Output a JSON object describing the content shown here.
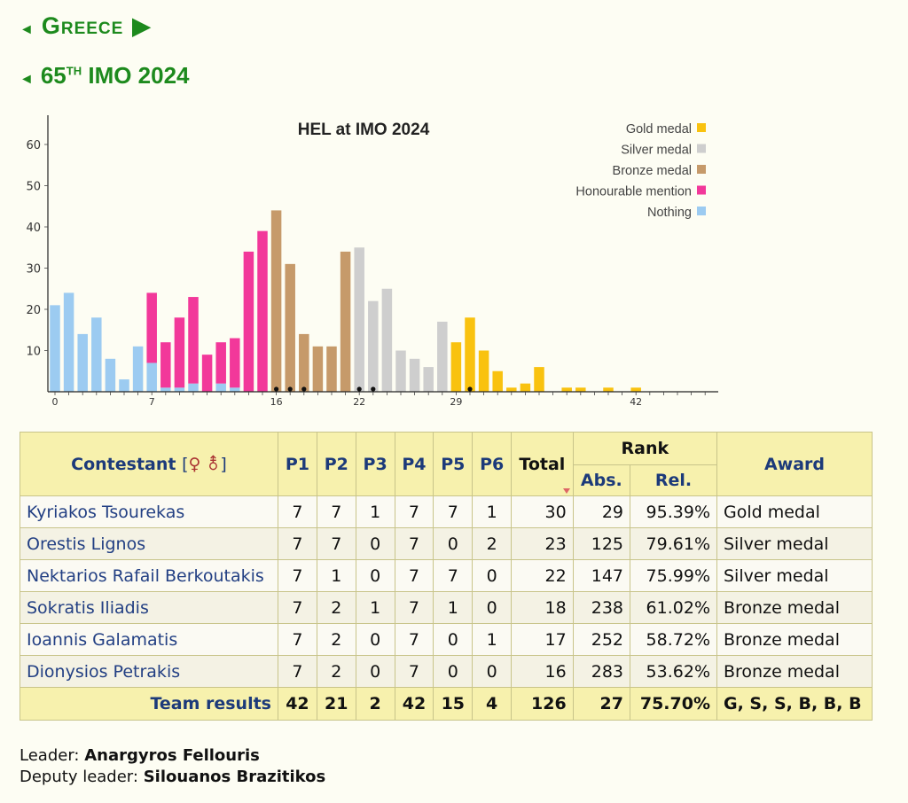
{
  "nav": {
    "country": "Greece",
    "imo_ordinal": "65",
    "imo_suffix": "TH",
    "imo_label": "IMO 2024"
  },
  "colors": {
    "gold": "#f9c20f",
    "silver": "#cecece",
    "bronze": "#c69a6a",
    "hm": "#f2389a",
    "nothing": "#9ccbf1",
    "nav_green": "#1d8a1d"
  },
  "chart_data": {
    "type": "bar",
    "title": "HEL at IMO 2024",
    "xlabel": "",
    "ylabel": "",
    "ylim": [
      0,
      65
    ],
    "xlim": [
      0,
      48
    ],
    "x_ticks": [
      0,
      7,
      16,
      22,
      29,
      42
    ],
    "y_ticks": [
      10,
      20,
      30,
      40,
      50,
      60
    ],
    "grid": false,
    "legend_position": "top-right",
    "legend": [
      "Gold medal",
      "Silver medal",
      "Bronze medal",
      "Honourable mention",
      "Nothing"
    ],
    "x": [
      0,
      1,
      2,
      3,
      4,
      5,
      6,
      7,
      8,
      9,
      10,
      11,
      12,
      13,
      14,
      15,
      16,
      17,
      18,
      19,
      20,
      21,
      22,
      23,
      24,
      25,
      26,
      27,
      28,
      29,
      30,
      31,
      32,
      33,
      34,
      35,
      36,
      37,
      38,
      39,
      40,
      41,
      42,
      43,
      44,
      45,
      46,
      47,
      48
    ],
    "series": [
      {
        "name": "Gold medal",
        "values": [
          0,
          0,
          0,
          0,
          0,
          0,
          0,
          0,
          0,
          0,
          0,
          0,
          0,
          0,
          0,
          0,
          0,
          0,
          0,
          0,
          0,
          0,
          0,
          0,
          0,
          0,
          0,
          0,
          0,
          12,
          18,
          10,
          5,
          1,
          2,
          6,
          0,
          1,
          1,
          0,
          1,
          0,
          1,
          0,
          0,
          0,
          0,
          0,
          0
        ]
      },
      {
        "name": "Silver medal",
        "values": [
          0,
          0,
          0,
          0,
          0,
          0,
          0,
          0,
          0,
          0,
          0,
          0,
          0,
          0,
          0,
          0,
          0,
          0,
          0,
          0,
          0,
          0,
          35,
          22,
          25,
          10,
          8,
          6,
          17,
          0,
          0,
          0,
          0,
          0,
          0,
          0,
          0,
          0,
          0,
          0,
          0,
          0,
          0,
          0,
          0,
          0,
          0,
          0,
          0
        ]
      },
      {
        "name": "Bronze medal",
        "values": [
          0,
          0,
          0,
          0,
          0,
          0,
          0,
          0,
          0,
          0,
          0,
          0,
          0,
          0,
          0,
          0,
          44,
          31,
          14,
          11,
          11,
          34,
          0,
          0,
          0,
          0,
          0,
          0,
          0,
          0,
          0,
          0,
          0,
          0,
          0,
          0,
          0,
          0,
          0,
          0,
          0,
          0,
          0,
          0,
          0,
          0,
          0,
          0,
          0
        ]
      },
      {
        "name": "Honourable mention",
        "values": [
          0,
          0,
          0,
          0,
          0,
          0,
          0,
          17,
          11,
          17,
          21,
          9,
          10,
          12,
          34,
          39,
          0,
          0,
          0,
          0,
          0,
          0,
          0,
          0,
          0,
          0,
          0,
          0,
          0,
          0,
          0,
          0,
          0,
          0,
          0,
          0,
          0,
          0,
          0,
          0,
          0,
          0,
          0,
          0,
          0,
          0,
          0,
          0,
          0
        ]
      },
      {
        "name": "Nothing",
        "values": [
          21,
          24,
          14,
          18,
          8,
          3,
          11,
          7,
          1,
          1,
          2,
          0,
          2,
          1,
          0,
          0,
          0,
          0,
          0,
          0,
          0,
          0,
          0,
          0,
          0,
          0,
          0,
          0,
          0,
          0,
          0,
          0,
          0,
          0,
          0,
          0,
          0,
          0,
          0,
          0,
          0,
          0,
          0,
          0,
          0,
          0,
          0,
          0,
          0
        ]
      }
    ],
    "team_scores": [
      16,
      17,
      18,
      22,
      23,
      30
    ]
  },
  "table": {
    "header": {
      "contestant": "Contestant",
      "gender_symbols": "♀ ⚨",
      "p1": "P1",
      "p2": "P2",
      "p3": "P3",
      "p4": "P4",
      "p5": "P5",
      "p6": "P6",
      "total": "Total",
      "rank": "Rank",
      "abs": "Abs.",
      "rel": "Rel.",
      "award": "Award"
    },
    "rows": [
      {
        "name": "Kyriakos Tsourekas",
        "p1": "7",
        "p2": "7",
        "p3": "1",
        "p4": "7",
        "p5": "7",
        "p6": "1",
        "total": "30",
        "abs": "29",
        "rel": "95.39%",
        "award": "Gold medal"
      },
      {
        "name": "Orestis Lignos",
        "p1": "7",
        "p2": "7",
        "p3": "0",
        "p4": "7",
        "p5": "0",
        "p6": "2",
        "total": "23",
        "abs": "125",
        "rel": "79.61%",
        "award": "Silver medal"
      },
      {
        "name": "Nektarios Rafail Berkoutakis",
        "p1": "7",
        "p2": "1",
        "p3": "0",
        "p4": "7",
        "p5": "7",
        "p6": "0",
        "total": "22",
        "abs": "147",
        "rel": "75.99%",
        "award": "Silver medal"
      },
      {
        "name": "Sokratis Iliadis",
        "p1": "7",
        "p2": "2",
        "p3": "1",
        "p4": "7",
        "p5": "1",
        "p6": "0",
        "total": "18",
        "abs": "238",
        "rel": "61.02%",
        "award": "Bronze medal"
      },
      {
        "name": "Ioannis Galamatis",
        "p1": "7",
        "p2": "2",
        "p3": "0",
        "p4": "7",
        "p5": "0",
        "p6": "1",
        "total": "17",
        "abs": "252",
        "rel": "58.72%",
        "award": "Bronze medal"
      },
      {
        "name": "Dionysios Petrakis",
        "p1": "7",
        "p2": "2",
        "p3": "0",
        "p4": "7",
        "p5": "0",
        "p6": "0",
        "total": "16",
        "abs": "283",
        "rel": "53.62%",
        "award": "Bronze medal"
      }
    ],
    "team": {
      "label": "Team results",
      "p1": "42",
      "p2": "21",
      "p3": "2",
      "p4": "42",
      "p5": "15",
      "p6": "4",
      "total": "126",
      "abs": "27",
      "rel": "75.70%",
      "award": "G, S, S, B, B, B"
    }
  },
  "leaders": {
    "leader_label": "Leader:",
    "leader_name": "Anargyros Fellouris",
    "deputy_label": "Deputy leader:",
    "deputy_name": "Silouanos Brazitikos"
  }
}
